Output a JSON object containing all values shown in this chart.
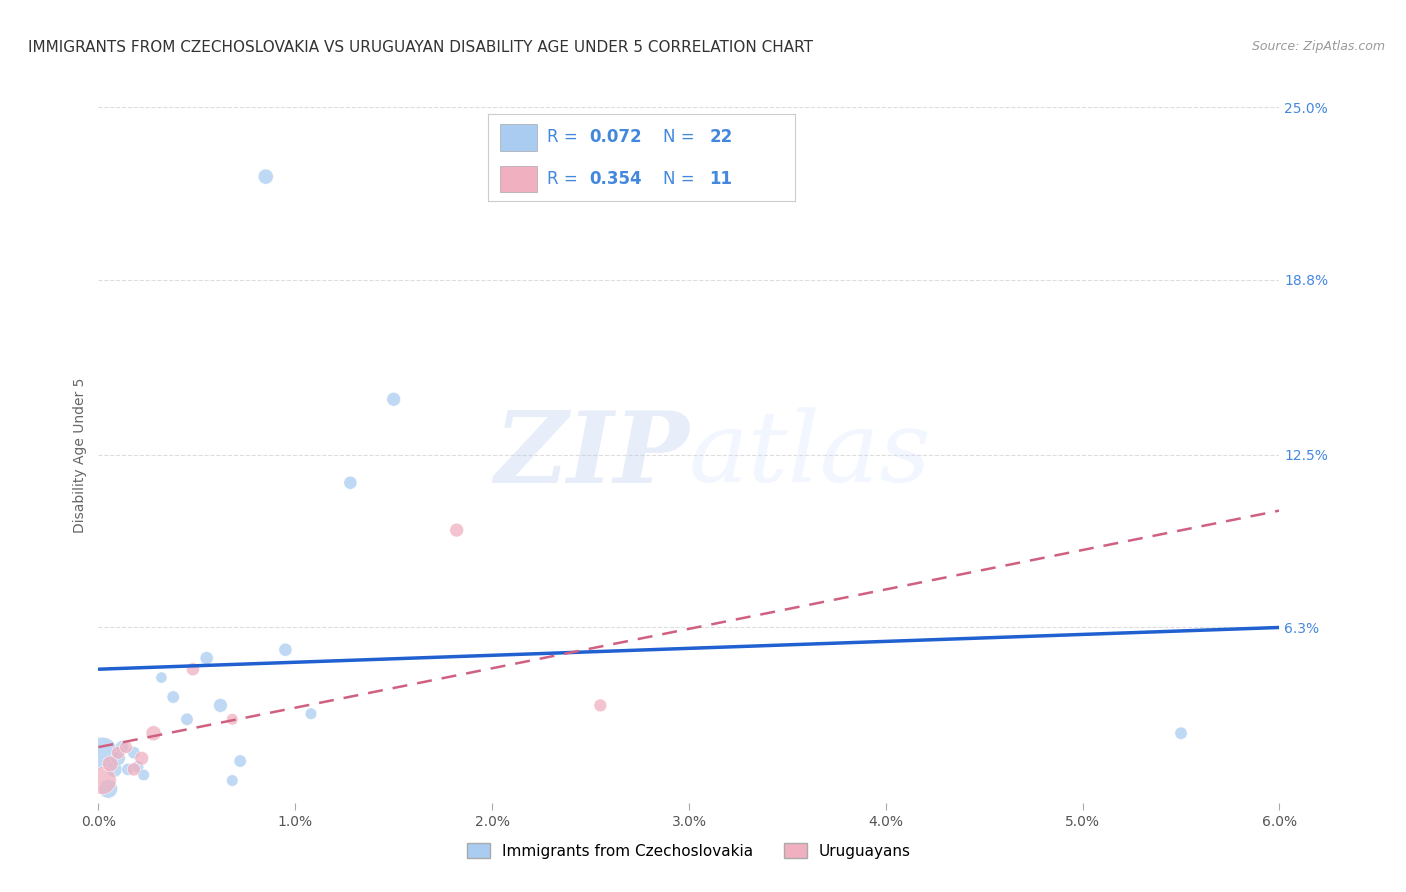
{
  "title": "IMMIGRANTS FROM CZECHOSLOVAKIA VS URUGUAYAN DISABILITY AGE UNDER 5 CORRELATION CHART",
  "source": "Source: ZipAtlas.com",
  "ylabel": "Disability Age Under 5",
  "xlim": [
    0.0,
    6.0
  ],
  "ylim": [
    0.0,
    25.0
  ],
  "xtick_labels": [
    "0.0%",
    "1.0%",
    "2.0%",
    "3.0%",
    "4.0%",
    "5.0%",
    "6.0%"
  ],
  "xtick_vals": [
    0.0,
    1.0,
    2.0,
    3.0,
    4.0,
    5.0,
    6.0
  ],
  "ytick_labels": [
    "25.0%",
    "18.8%",
    "12.5%",
    "6.3%"
  ],
  "ytick_vals": [
    25.0,
    18.8,
    12.5,
    6.3
  ],
  "blue_R": 0.072,
  "blue_N": 22,
  "pink_R": 0.354,
  "pink_N": 11,
  "blue_color": "#AACCF0",
  "pink_color": "#F0B0C0",
  "blue_line_color": "#2060D0",
  "pink_line_color": "#D06080",
  "text_blue_color": "#4488DD",
  "watermark": "ZIPatlas",
  "blue_scatter_x": [
    0.85,
    1.5,
    1.28,
    0.02,
    0.05,
    0.08,
    0.1,
    0.12,
    0.15,
    0.18,
    0.2,
    0.23,
    0.32,
    0.38,
    0.45,
    0.55,
    0.62,
    0.68,
    0.72,
    0.95,
    1.08,
    5.5
  ],
  "blue_scatter_y": [
    22.5,
    14.5,
    11.5,
    1.8,
    0.5,
    1.2,
    1.6,
    2.0,
    1.2,
    1.8,
    1.3,
    1.0,
    4.5,
    3.8,
    3.0,
    5.2,
    3.5,
    0.8,
    1.5,
    5.5,
    3.2,
    2.5
  ],
  "blue_scatter_size": [
    120,
    100,
    90,
    500,
    180,
    130,
    110,
    90,
    80,
    80,
    75,
    70,
    65,
    80,
    80,
    90,
    100,
    70,
    80,
    90,
    70,
    80
  ],
  "pink_scatter_x": [
    0.02,
    0.06,
    0.1,
    0.14,
    0.18,
    0.22,
    0.28,
    0.48,
    0.68,
    1.82,
    2.55
  ],
  "pink_scatter_y": [
    0.8,
    1.4,
    1.8,
    2.0,
    1.2,
    1.6,
    2.5,
    4.8,
    3.0,
    9.8,
    3.5
  ],
  "pink_scatter_size": [
    400,
    130,
    90,
    85,
    90,
    100,
    120,
    90,
    70,
    100,
    85
  ],
  "blue_trend_x": [
    0.0,
    6.0
  ],
  "blue_trend_y": [
    4.8,
    6.3
  ],
  "pink_trend_x": [
    0.0,
    6.0
  ],
  "pink_trend_y": [
    2.0,
    10.5
  ],
  "background_color": "#FFFFFF",
  "grid_color": "#DDDDDD",
  "title_fontsize": 11,
  "axis_label_fontsize": 10,
  "tick_fontsize": 10,
  "ytick_color": "#4488DD",
  "xtick_color": "#555555"
}
